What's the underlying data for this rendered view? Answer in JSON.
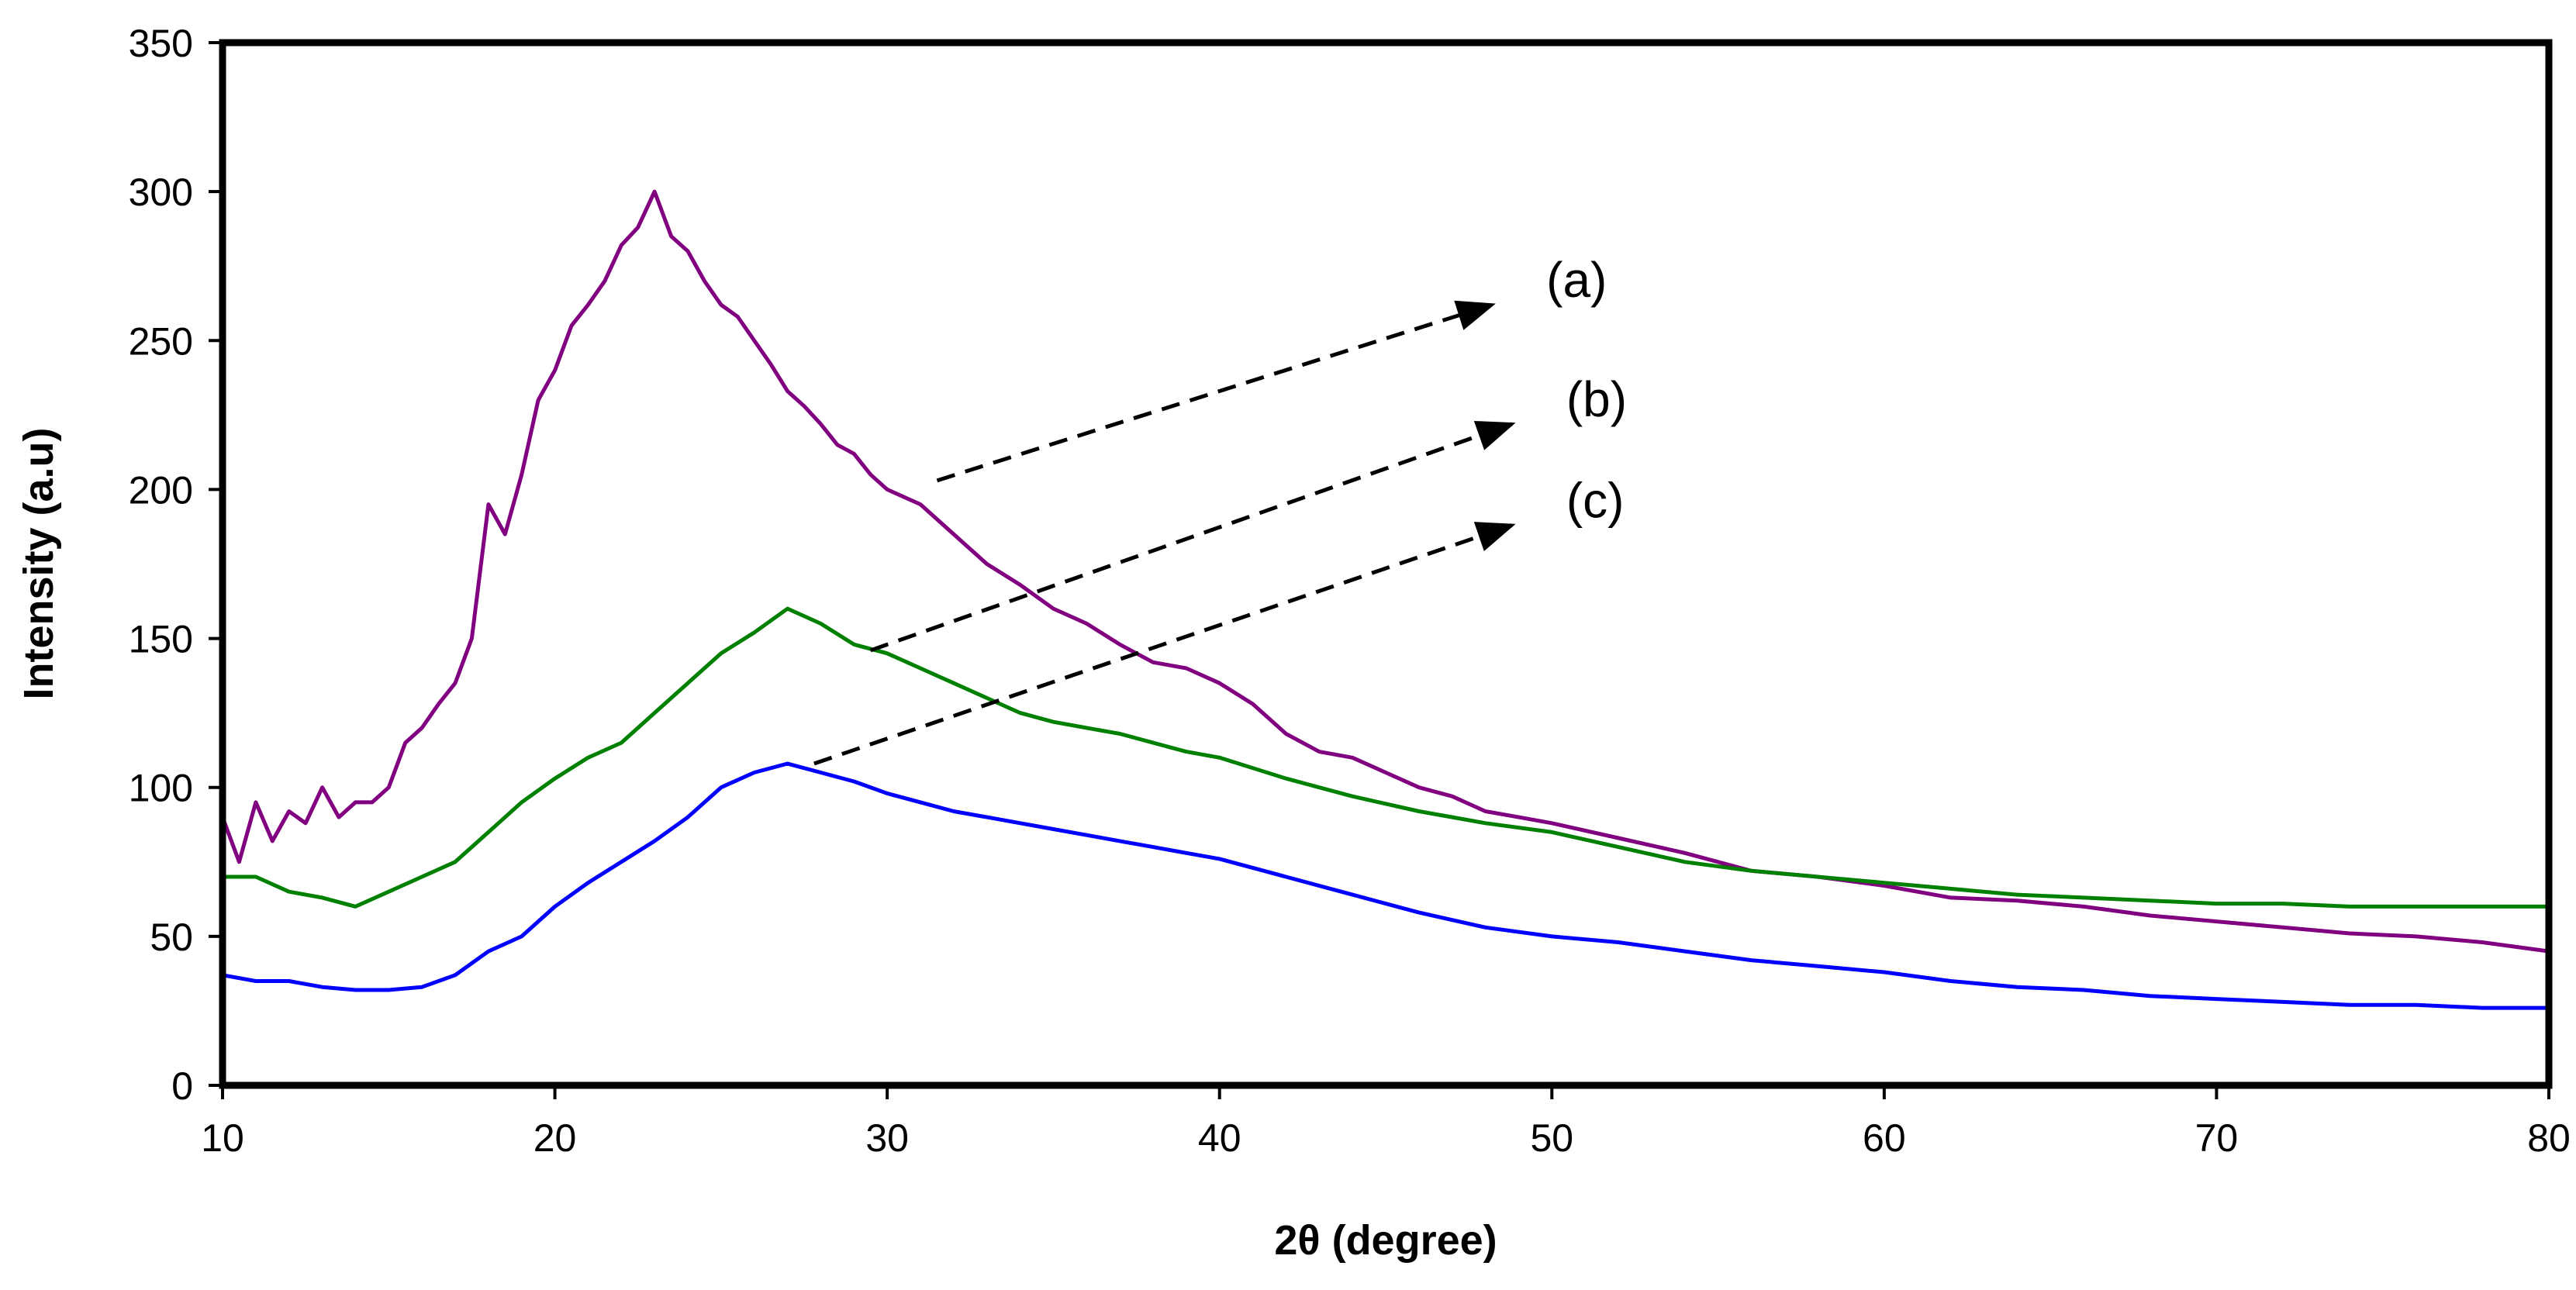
{
  "chart_data": {
    "type": "line",
    "xlabel": "2θ (degree)",
    "ylabel": "Intensity (a.u)",
    "xlim": [
      10,
      80
    ],
    "ylim": [
      0,
      350
    ],
    "xticks": [
      10,
      20,
      30,
      40,
      50,
      60,
      70,
      80
    ],
    "yticks": [
      0,
      50,
      100,
      150,
      200,
      250,
      300,
      350
    ],
    "grid": false,
    "legend": "none",
    "series": [
      {
        "name": "(a)",
        "color": "#800080",
        "x": [
          10,
          10.5,
          11,
          11.5,
          12,
          12.5,
          13,
          13.5,
          14,
          14.5,
          15,
          15.5,
          16,
          16.5,
          17,
          17.5,
          18,
          18.5,
          19,
          19.5,
          20,
          20.5,
          21,
          21.5,
          22,
          22.5,
          23,
          23.5,
          24,
          24.5,
          25,
          25.5,
          26,
          26.5,
          27,
          27.5,
          28,
          28.5,
          29,
          29.5,
          30,
          31,
          32,
          33,
          34,
          35,
          36,
          37,
          38,
          39,
          40,
          41,
          42,
          43,
          44,
          45,
          46,
          47,
          48,
          49,
          50,
          52,
          54,
          56,
          58,
          60,
          62,
          64,
          66,
          68,
          70,
          72,
          74,
          76,
          78,
          80
        ],
        "values": [
          90,
          75,
          95,
          82,
          92,
          88,
          100,
          90,
          95,
          95,
          100,
          115,
          120,
          128,
          135,
          150,
          195,
          185,
          205,
          230,
          240,
          255,
          262,
          270,
          282,
          288,
          300,
          285,
          280,
          270,
          262,
          258,
          250,
          242,
          233,
          228,
          222,
          215,
          212,
          205,
          200,
          195,
          185,
          175,
          168,
          160,
          155,
          148,
          142,
          140,
          135,
          128,
          118,
          112,
          110,
          105,
          100,
          97,
          92,
          90,
          88,
          83,
          78,
          72,
          70,
          67,
          63,
          62,
          60,
          57,
          55,
          53,
          51,
          50,
          48,
          45
        ]
      },
      {
        "name": "(b)",
        "color": "#008000",
        "x": [
          10,
          11,
          12,
          13,
          14,
          15,
          16,
          17,
          18,
          19,
          20,
          21,
          22,
          23,
          24,
          25,
          26,
          27,
          28,
          29,
          30,
          31,
          32,
          33,
          34,
          35,
          36,
          37,
          38,
          39,
          40,
          42,
          44,
          46,
          48,
          50,
          52,
          54,
          56,
          58,
          60,
          62,
          64,
          66,
          68,
          70,
          72,
          74,
          76,
          78,
          80
        ],
        "values": [
          70,
          70,
          65,
          63,
          60,
          65,
          70,
          75,
          85,
          95,
          103,
          110,
          115,
          125,
          135,
          145,
          152,
          160,
          155,
          148,
          145,
          140,
          135,
          130,
          125,
          122,
          120,
          118,
          115,
          112,
          110,
          103,
          97,
          92,
          88,
          85,
          80,
          75,
          72,
          70,
          68,
          66,
          64,
          63,
          62,
          61,
          61,
          60,
          60,
          60,
          60
        ]
      },
      {
        "name": "(c)",
        "color": "#0000ff",
        "x": [
          10,
          11,
          12,
          13,
          14,
          15,
          16,
          17,
          18,
          19,
          20,
          21,
          22,
          23,
          24,
          25,
          26,
          27,
          28,
          29,
          30,
          31,
          32,
          33,
          34,
          35,
          36,
          37,
          38,
          39,
          40,
          42,
          44,
          46,
          48,
          50,
          52,
          54,
          56,
          58,
          60,
          62,
          64,
          66,
          68,
          70,
          72,
          74,
          76,
          78,
          80
        ],
        "values": [
          37,
          35,
          35,
          33,
          32,
          32,
          33,
          37,
          45,
          50,
          60,
          68,
          75,
          82,
          90,
          100,
          105,
          108,
          105,
          102,
          98,
          95,
          92,
          90,
          88,
          86,
          84,
          82,
          80,
          78,
          76,
          70,
          64,
          58,
          53,
          50,
          48,
          45,
          42,
          40,
          38,
          35,
          33,
          32,
          30,
          29,
          28,
          27,
          27,
          26,
          26
        ]
      }
    ],
    "annotations": [
      {
        "label": "(a)",
        "arrow_from": [
          31.5,
          203
        ],
        "arrow_to": [
          48.2,
          262
        ]
      },
      {
        "label": "(b)",
        "arrow_from": [
          29.5,
          146
        ],
        "arrow_to": [
          48.8,
          222
        ]
      },
      {
        "label": "(c)",
        "arrow_from": [
          27.8,
          108
        ],
        "arrow_to": [
          48.8,
          188
        ]
      }
    ]
  }
}
